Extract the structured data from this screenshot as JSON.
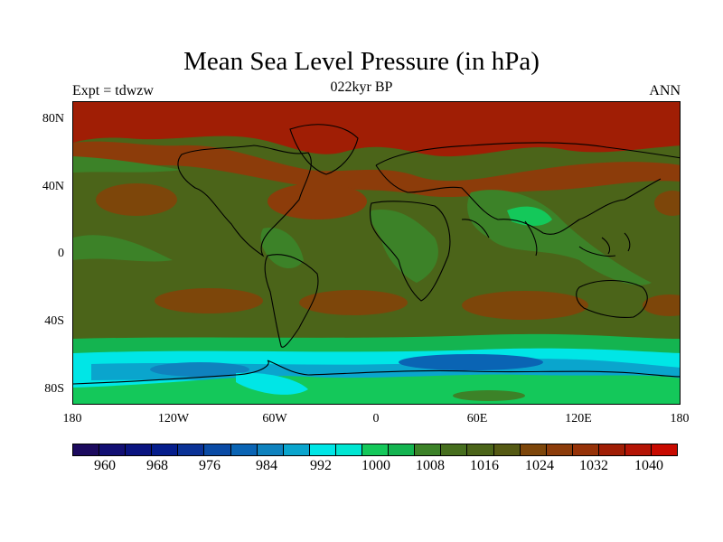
{
  "title": "Mean Sea Level Pressure (in hPa)",
  "subtitle": "022kyr BP",
  "left_label": "Expt = tdwzw",
  "right_label": "ANN",
  "y_axis": [
    "80N",
    "40N",
    "0",
    "40S",
    "80S"
  ],
  "x_axis": [
    "180",
    "120W",
    "60W",
    "0",
    "60E",
    "120E",
    "180"
  ],
  "colorbar_labels": [
    "960",
    "968",
    "976",
    "984",
    "992",
    "1000",
    "1008",
    "1016",
    "1024",
    "1032",
    "1040"
  ],
  "colorbar_colors": [
    "#1c0a5e",
    "#120f73",
    "#0a1480",
    "#061e8c",
    "#0a3296",
    "#0a4ba5",
    "#0a64b4",
    "#0f82be",
    "#0aa5cd",
    "#00e6e6",
    "#00e6d2",
    "#14c85a",
    "#14b450",
    "#3c8228",
    "#466e1e",
    "#4b6419",
    "#555a14",
    "#7d460a",
    "#8c3c0a",
    "#963208",
    "#a01e05",
    "#b41405",
    "#c80a00"
  ],
  "map_colors": {
    "base": "#4b6419",
    "high_north": "#a01e05",
    "high_mid": "#8c3c0a",
    "high_light": "#7d460a",
    "low_green": "#3c8228",
    "low_green2": "#14b450",
    "low_green3": "#14c85a",
    "cyan": "#00e6e6",
    "blue_light": "#0aa5cd",
    "blue_mid": "#0f82be",
    "blue_dark": "#0a64b4"
  }
}
